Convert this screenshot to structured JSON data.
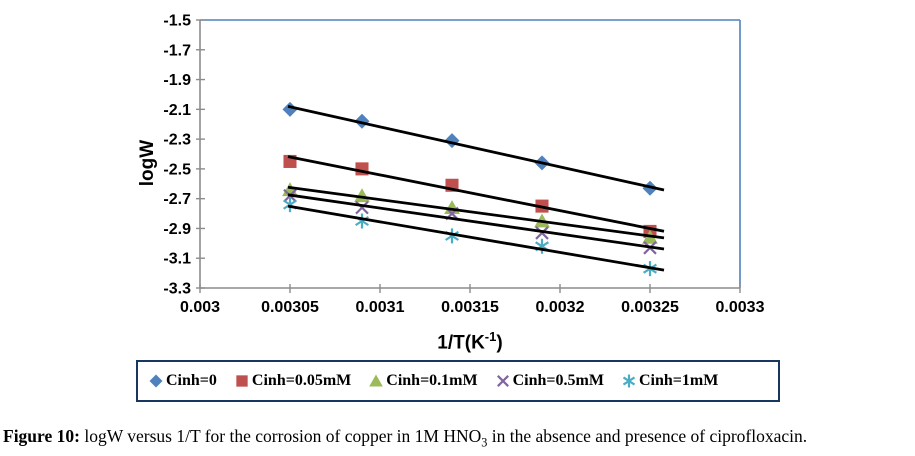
{
  "figure": {
    "caption": {
      "label": "Figure 10:",
      "text_pre": " logW versus 1/T for the corrosion of copper in 1M HNO",
      "subscript": "3",
      "text_post": " in the absence and presence of ciprofloxacin."
    }
  },
  "colors": {
    "plot_border": "#4F81BD",
    "axis": "#8C8C8C",
    "legend_border": "#17375E",
    "trendline": "#000000"
  },
  "chart_data": {
    "type": "scatter",
    "title": "",
    "xlabel_pre": "1/T(K",
    "xlabel_sup": "-1",
    "xlabel_post": ")",
    "ylabel": "logW",
    "xlim": [
      0.003,
      0.0033
    ],
    "ylim": [
      -3.3,
      -1.5
    ],
    "grid": false,
    "legend_position": "bottom",
    "x_tick_labels": [
      "0.003",
      "0.00305",
      "0.0031",
      "0.00315",
      "0.0032",
      "0.00325",
      "0.0033"
    ],
    "y_tick_labels": [
      "-1.5",
      "-1.7",
      "-1.9",
      "-2.1",
      "-2.3",
      "-2.5",
      "-2.7",
      "-2.9",
      "-3.1",
      "-3.3"
    ],
    "x": [
      0.00305,
      0.00309,
      0.00314,
      0.00319,
      0.00325
    ],
    "trendline_color": "#000000",
    "series": [
      {
        "name": "Cinh=0",
        "marker": "diamond",
        "color": "#4F81BD",
        "values": [
          -2.1,
          -2.18,
          -2.31,
          -2.46,
          -2.63
        ]
      },
      {
        "name": "Cinh=0.05mM",
        "marker": "square",
        "color": "#C0504D",
        "values": [
          -2.45,
          -2.5,
          -2.61,
          -2.75,
          -2.92
        ]
      },
      {
        "name": "Cinh=0.1mM",
        "marker": "triangle",
        "color": "#9BBB59",
        "values": [
          -2.64,
          -2.68,
          -2.76,
          -2.85,
          -2.96
        ]
      },
      {
        "name": "Cinh=0.5mM",
        "marker": "x",
        "color": "#8064A2",
        "values": [
          -2.68,
          -2.76,
          -2.8,
          -2.93,
          -3.03
        ]
      },
      {
        "name": "Cinh=1mM",
        "marker": "asterisk",
        "color": "#4BACC6",
        "values": [
          -2.74,
          -2.85,
          -2.95,
          -3.02,
          -3.17
        ]
      }
    ]
  }
}
